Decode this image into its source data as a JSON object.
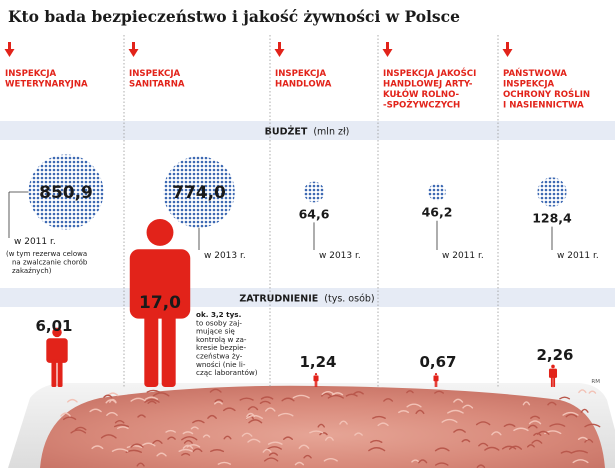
{
  "title": "Kto bada bezpieczeństwo i jakość żywności w Polsce",
  "colors": {
    "red": "#e2231a",
    "blue": "#3c68b2",
    "band": "#e6ebf5",
    "text": "#1a1a1a"
  },
  "sections": {
    "budget": {
      "label": "BUDŻET",
      "unit": "(mln zł)"
    },
    "employment": {
      "label": "ZATRUDNIENIE",
      "unit": "(tys. osób)"
    }
  },
  "credit": "RM",
  "chart_data": {
    "type": "bubble",
    "categories": [
      "INSPEKCJA WETERYNARYJNA",
      "INSPEKCJA SANITARNA",
      "INSPEKCJA HANDLOWA",
      "INSPEKCJA JAKOŚCI HANDLOWEJ ARTYKUŁÓW ROLNO-SPOŻYWCZYCH",
      "PAŃSTWOWA INSPEKCJA OCHRONY ROŚLIN I NASIENNICTWA"
    ],
    "category_lines": [
      [
        "INSPEKCJA",
        "WETERYNARYJNA"
      ],
      [
        "INSPEKCJA",
        "SANITARNA"
      ],
      [
        "INSPEKCJA",
        "HANDLOWA"
      ],
      [
        "INSPEKCJA JAKOŚCI",
        "HANDLOWEJ ARTY-",
        "KUŁÓW ROLNO-",
        "-SPOŻYWCZYCH"
      ],
      [
        "PAŃSTWOWA",
        "INSPEKCJA",
        "OCHRONY ROŚLIN",
        "I NASIENNICTWA"
      ]
    ],
    "series": [
      {
        "name": "BUDŻET",
        "values": [
          850.9,
          774.0,
          64.6,
          46.2,
          128.4
        ],
        "value_labels": [
          "850,9",
          "774,0",
          "64,6",
          "46,2",
          "128,4"
        ]
      },
      {
        "name": "ZATRUDNIENIE",
        "values": [
          6.01,
          17.0,
          1.24,
          0.67,
          2.26
        ],
        "value_labels": [
          "6,01",
          "17,0",
          "1,24",
          "0,67",
          "2,26"
        ]
      }
    ],
    "budget_year_notes": [
      "w 2011 r.",
      "w 2013 r.",
      "w 2013 r.",
      "w 2011 r.",
      "w 2011 r."
    ],
    "budget_extra_note": [
      "(w tym rezerwa celowa",
      "na zwalczanie chorób",
      "zakaźnych)"
    ],
    "employment_extra_note": [
      "ok. 3,2 tys.",
      "to osoby zaj-",
      "mujące się",
      "kontrolą w za-",
      "kresie bezpie-",
      "czeństwa ży-",
      "wności (nie li-",
      "cząc laborantów)"
    ]
  }
}
